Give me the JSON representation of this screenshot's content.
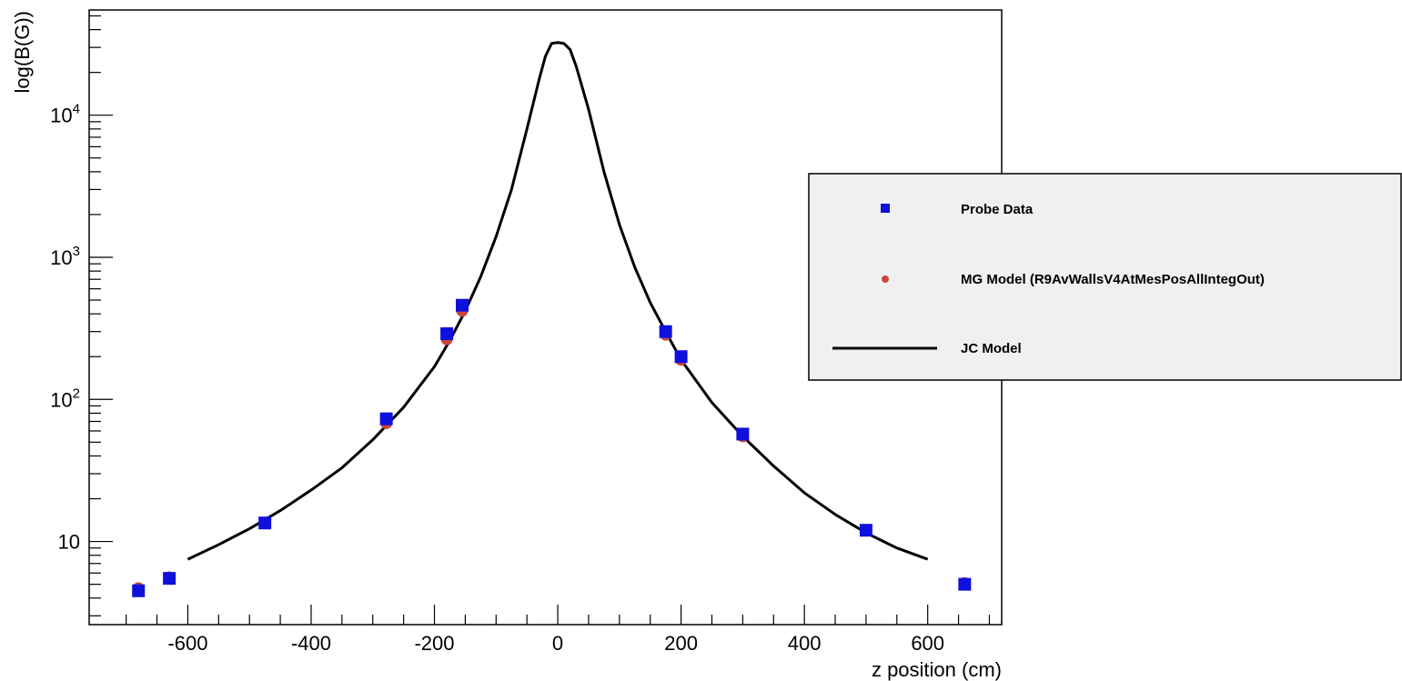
{
  "chart_data": {
    "type": "scatter",
    "title": "",
    "xlabel": "z position (cm)",
    "ylabel": "log(B(G))",
    "xlim": [
      -760,
      720
    ],
    "ylim": [
      2.6,
      55000
    ],
    "y_scale": "log",
    "grid": false,
    "legend_position": "right, outside plot",
    "x_ticks": [
      -600,
      -400,
      -200,
      0,
      200,
      400,
      600
    ],
    "y_ticks": [
      {
        "value": 10,
        "base": "10",
        "exp": ""
      },
      {
        "value": 100,
        "base": "10",
        "exp": "2"
      },
      {
        "value": 1000,
        "base": "10",
        "exp": "3"
      },
      {
        "value": 10000,
        "base": "10",
        "exp": "4"
      }
    ],
    "series": [
      {
        "name": "Probe Data",
        "kind": "marker-square",
        "color": "#1010dd",
        "x": [
          -680,
          -630,
          -475,
          -278,
          -180,
          -155,
          175,
          200,
          300,
          500,
          660
        ],
        "y": [
          4.5,
          5.5,
          13.5,
          73,
          290,
          460,
          300,
          200,
          57,
          12,
          5.0
        ]
      },
      {
        "name": "MG Model (R9AvWallsV4AtMesPosAllIntegOut)",
        "kind": "marker-circle",
        "color": "#c8473d",
        "x": [
          -680,
          -630,
          -475,
          -278,
          -180,
          -155,
          175,
          200,
          300,
          500,
          660
        ],
        "y": [
          4.7,
          5.6,
          13.5,
          68,
          265,
          420,
          285,
          190,
          55,
          12,
          5.1
        ]
      },
      {
        "name": "JC Model",
        "kind": "line",
        "color": "#000000",
        "x": [
          -600,
          -550,
          -500,
          -450,
          -400,
          -350,
          -300,
          -250,
          -200,
          -175,
          -150,
          -125,
          -100,
          -75,
          -50,
          -30,
          -20,
          -10,
          0,
          10,
          20,
          30,
          50,
          75,
          100,
          125,
          150,
          175,
          200,
          250,
          300,
          350,
          400,
          450,
          500,
          550,
          600
        ],
        "y": [
          7.5,
          9.5,
          12.3,
          16.5,
          23,
          33,
          52,
          88,
          170,
          260,
          420,
          730,
          1400,
          3000,
          8000,
          18000,
          26000,
          32000,
          32500,
          32000,
          29000,
          22000,
          11000,
          4000,
          1700,
          850,
          480,
          300,
          190,
          95,
          55,
          34,
          22,
          15.5,
          11.5,
          9,
          7.5
        ]
      }
    ]
  }
}
